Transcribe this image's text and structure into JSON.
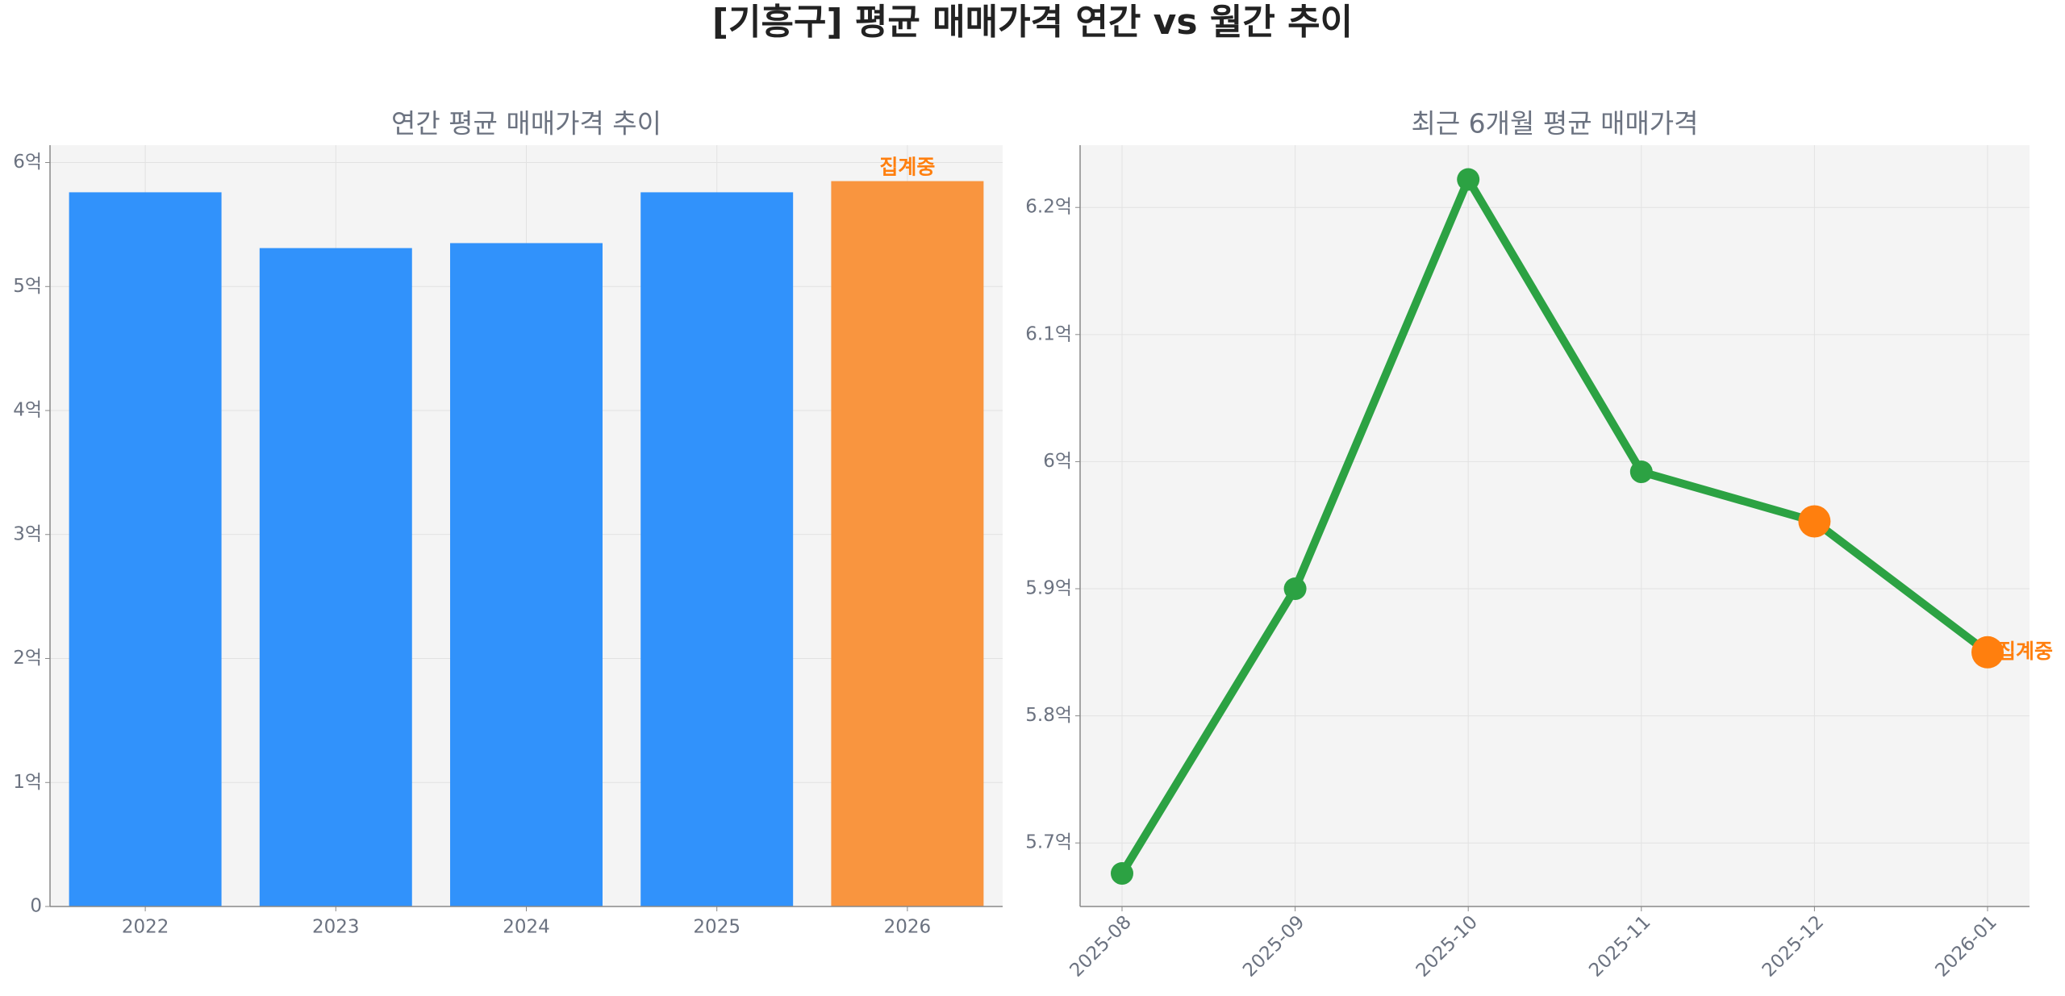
{
  "title": "[기흥구] 평균 매매가격 연간 vs 월간 추이",
  "chart_data": [
    {
      "type": "bar",
      "title": "연간 평균 매매가격 추이",
      "categories": [
        "2022",
        "2023",
        "2024",
        "2025",
        "2026"
      ],
      "values": [
        5.76,
        5.31,
        5.35,
        5.76,
        5.85
      ],
      "colors": [
        "#3192fb",
        "#3192fb",
        "#3192fb",
        "#3192fb",
        "#f9953f"
      ],
      "ylim": [
        0,
        6.14
      ],
      "yticks": [
        0,
        {
          "value": 1,
          "label": "1억"
        },
        {
          "value": 2,
          "label": "2억"
        },
        {
          "value": 3,
          "label": "3억"
        },
        {
          "value": 4,
          "label": "4억"
        },
        {
          "value": 5,
          "label": "5억"
        },
        {
          "value": 6,
          "label": "6억"
        }
      ],
      "grid": true,
      "annotations": [
        {
          "text": "집계중",
          "index": 4,
          "color": "#ff7f0e"
        }
      ]
    },
    {
      "type": "line",
      "title": "최근 6개월 평균 매매가격",
      "categories": [
        "2025-08",
        "2025-09",
        "2025-10",
        "2025-11",
        "2025-12",
        "2026-01"
      ],
      "values": [
        5.676,
        5.9,
        6.222,
        5.992,
        5.953,
        5.85
      ],
      "color": "#2ca243",
      "marker_colors": [
        "#2ca243",
        "#2ca243",
        "#2ca243",
        "#2ca243",
        "#ff7f0e",
        "#ff7f0e"
      ],
      "ylim": [
        5.65,
        6.249
      ],
      "yticks": [
        {
          "value": 5.7,
          "label": "5.7억"
        },
        {
          "value": 5.8,
          "label": "5.8억"
        },
        {
          "value": 5.9,
          "label": "5.9억"
        },
        {
          "value": 6,
          "label": "6억"
        },
        {
          "value": 6.1,
          "label": "6.1억"
        },
        {
          "value": 6.2,
          "label": "6.2억"
        }
      ],
      "grid": true,
      "annotations": [
        {
          "text": "집계중",
          "index": 5,
          "color": "#ff7f0e"
        }
      ]
    }
  ]
}
